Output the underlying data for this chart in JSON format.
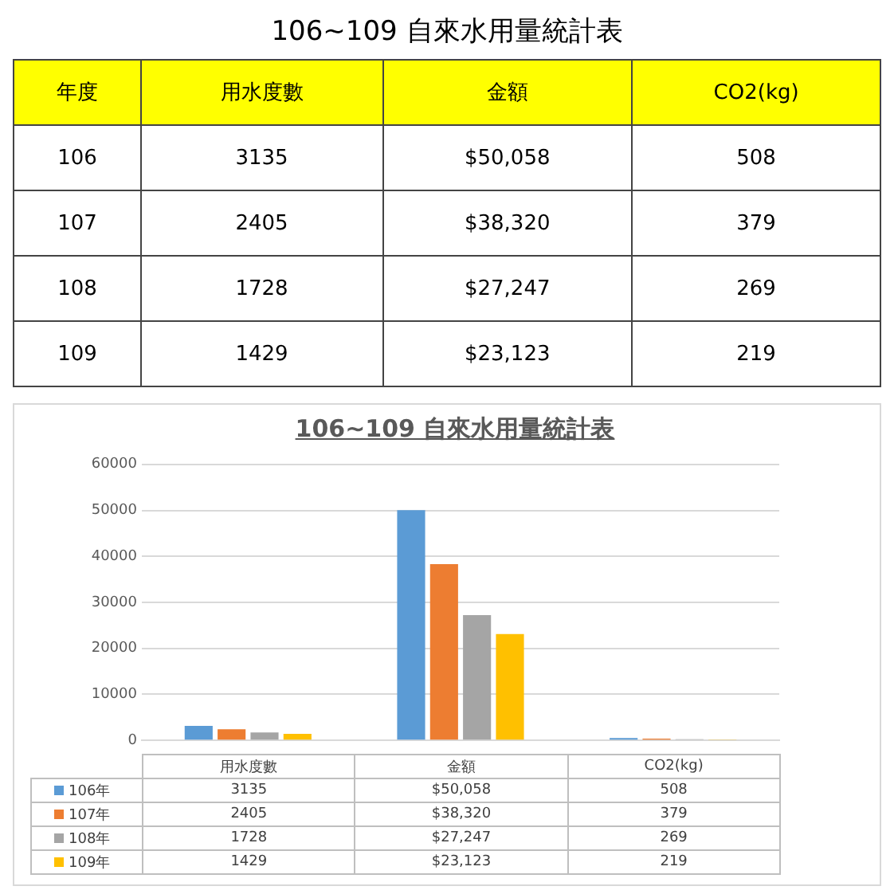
{
  "chart_data": {
    "type": "bar",
    "title": "106~109 自來水用量統計表",
    "annotations": [
      "年度",
      "106",
      "107",
      "108",
      "109"
    ],
    "categories": [
      "用水度數",
      "金額",
      "CO2(kg)"
    ],
    "series": [
      {
        "name": "106年",
        "color": "#5b9bd5",
        "values": [
          3135,
          50058,
          508
        ],
        "value_labels": [
          "3135",
          "$50,058",
          "508"
        ]
      },
      {
        "name": "107年",
        "color": "#ed7d31",
        "values": [
          2405,
          38320,
          379
        ],
        "value_labels": [
          "2405",
          "$38,320",
          "379"
        ]
      },
      {
        "name": "108年",
        "color": "#a5a5a5",
        "values": [
          1728,
          27247,
          269
        ],
        "value_labels": [
          "1728",
          "$27,247",
          "269"
        ]
      },
      {
        "name": "109年",
        "color": "#ffc000",
        "values": [
          1429,
          23123,
          219
        ],
        "value_labels": [
          "1429",
          "$23,123",
          "219"
        ]
      }
    ],
    "ylim": [
      0,
      60000
    ],
    "yticks": [
      0,
      10000,
      20000,
      30000,
      40000,
      50000,
      60000
    ],
    "grid": "y",
    "legend": "bottom"
  }
}
